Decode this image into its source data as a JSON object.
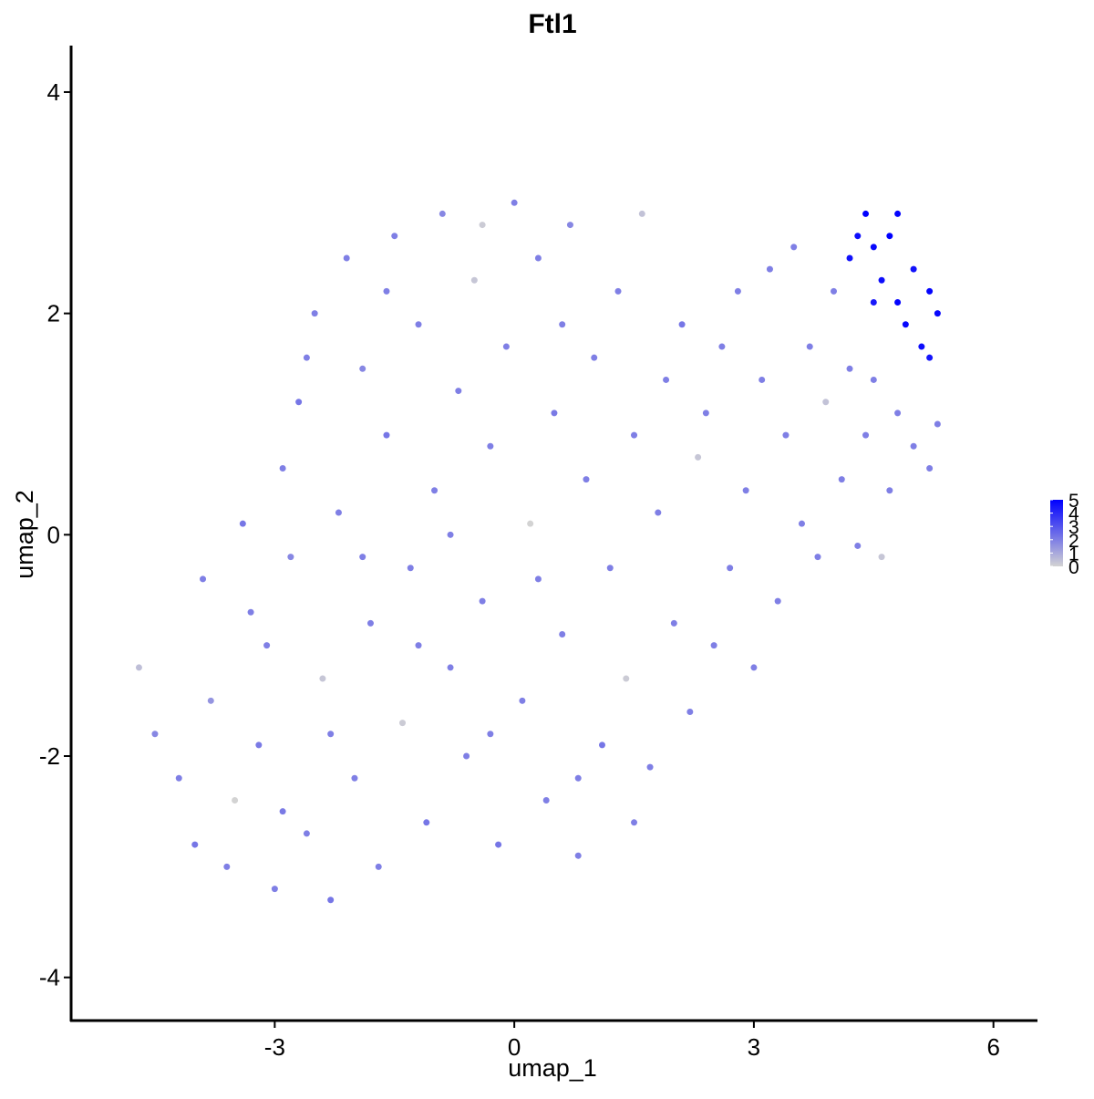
{
  "chart_data": {
    "type": "scatter",
    "title": "Ftl1",
    "x_label": "umap_1",
    "y_label": "umap_2",
    "xlim": [
      -5.55,
      6.54
    ],
    "ylim": [
      -4.39,
      4.42
    ],
    "xticks": [
      -3,
      0,
      3,
      6
    ],
    "yticks": [
      -4,
      -2,
      0,
      2,
      4
    ],
    "color_low": "#d3d3d3",
    "color_high": "#0000ff",
    "colorbar_lim": [
      0,
      5
    ],
    "colorbar_ticks": [
      0,
      1,
      2,
      3,
      4,
      5
    ],
    "x": [
      -4.7,
      -4.5,
      -4.2,
      -4.0,
      -3.8,
      -3.6,
      -3.5,
      -3.3,
      -3.2,
      -3.0,
      -2.9,
      -2.8,
      -2.7,
      -2.6,
      -2.5,
      -2.4,
      -2.3,
      -2.2,
      -2.1,
      -2.0,
      -1.9,
      -1.8,
      -1.7,
      -1.6,
      -1.5,
      -1.4,
      -1.3,
      -1.2,
      -1.1,
      -1.0,
      -0.9,
      -0.8,
      -0.7,
      -0.6,
      -0.5,
      -0.4,
      -0.3,
      -0.2,
      -0.1,
      0.0,
      0.1,
      0.2,
      0.3,
      0.4,
      0.5,
      0.6,
      0.7,
      0.8,
      0.9,
      1.0,
      1.1,
      1.2,
      1.3,
      1.4,
      1.5,
      1.6,
      1.7,
      1.8,
      1.9,
      2.0,
      2.1,
      2.2,
      2.3,
      2.4,
      2.5,
      2.6,
      2.7,
      2.8,
      2.9,
      3.0,
      3.1,
      3.2,
      3.3,
      3.4,
      3.5,
      3.6,
      3.7,
      3.8,
      3.9,
      4.0,
      4.1,
      4.2,
      4.3,
      4.4,
      4.5,
      4.6,
      4.7,
      4.8,
      5.0,
      5.2,
      5.3,
      4.2,
      4.4,
      4.5,
      4.6,
      4.7,
      4.8,
      4.9,
      5.0,
      5.1,
      5.2,
      5.3,
      4.5,
      4.8,
      5.2,
      4.3,
      -3.9,
      -3.4,
      -3.1,
      -2.9,
      -2.3,
      -1.9,
      -1.2,
      -0.8,
      -0.3,
      0.3,
      0.8,
      1.5,
      0.6,
      -1.6,
      -2.6,
      -0.4
    ],
    "y": [
      -1.2,
      -1.8,
      -2.2,
      -2.8,
      -1.5,
      -3.0,
      -2.4,
      -0.7,
      -1.9,
      -3.2,
      0.6,
      -0.2,
      1.2,
      -2.7,
      2.0,
      -1.3,
      -3.3,
      0.2,
      2.5,
      -2.2,
      1.5,
      -0.8,
      -3.0,
      0.9,
      2.7,
      -1.7,
      -0.3,
      1.9,
      -2.6,
      0.4,
      2.9,
      -1.2,
      1.3,
      -2.0,
      2.3,
      -0.6,
      0.8,
      -2.8,
      1.7,
      3.0,
      -1.5,
      0.1,
      2.5,
      -2.4,
      1.1,
      -0.9,
      2.8,
      -2.9,
      0.5,
      1.6,
      -1.9,
      -0.3,
      2.2,
      -1.3,
      0.9,
      2.9,
      -2.1,
      0.2,
      1.4,
      -0.8,
      1.9,
      -1.6,
      0.7,
      1.1,
      -1.0,
      1.7,
      -0.3,
      2.2,
      0.4,
      -1.2,
      1.4,
      2.4,
      -0.6,
      0.9,
      2.6,
      0.1,
      1.7,
      -0.2,
      1.2,
      2.2,
      0.5,
      1.5,
      -0.1,
      0.9,
      1.4,
      -0.2,
      0.4,
      1.1,
      0.8,
      0.6,
      1.0,
      2.5,
      2.9,
      2.6,
      2.3,
      2.7,
      2.1,
      1.9,
      2.4,
      1.7,
      2.2,
      2.0,
      2.1,
      2.9,
      1.6,
      2.7,
      -0.4,
      0.1,
      -1.0,
      -2.5,
      -1.8,
      -0.2,
      -1.0,
      0.0,
      -1.8,
      -0.4,
      -2.2,
      -2.6,
      1.9,
      2.2,
      1.6,
      2.8
    ],
    "values": [
      0.5,
      1.8,
      2,
      2.2,
      1.5,
      2,
      0,
      2,
      2.1,
      2,
      2,
      1.8,
      2.2,
      2,
      2,
      0.3,
      2.2,
      2,
      2,
      2,
      1.8,
      2,
      2,
      2.2,
      2,
      0.2,
      2,
      2,
      2.2,
      2,
      1.8,
      2,
      2,
      2,
      0.3,
      2,
      2,
      2.2,
      2,
      2,
      2,
      0,
      2,
      2,
      2.1,
      2,
      1.8,
      2,
      2,
      2,
      2.2,
      2,
      2,
      0.2,
      2,
      0.4,
      2,
      2,
      2,
      2,
      2.2,
      2,
      0.3,
      2,
      2,
      2,
      2,
      2,
      2,
      2,
      2,
      2,
      2,
      2,
      2,
      2,
      2,
      2,
      0.4,
      2,
      2,
      2,
      2,
      2,
      2,
      0.3,
      2,
      2,
      2,
      2,
      2,
      4.6,
      5,
      4.8,
      4.7,
      5,
      4.9,
      4.8,
      4.6,
      4.7,
      4.9,
      4.8,
      4.4,
      4.9,
      4.5,
      4.7,
      2,
      2.2,
      2,
      2.1,
      2,
      2,
      2,
      2,
      2,
      2,
      2,
      2,
      2,
      2,
      2,
      0.2
    ]
  }
}
